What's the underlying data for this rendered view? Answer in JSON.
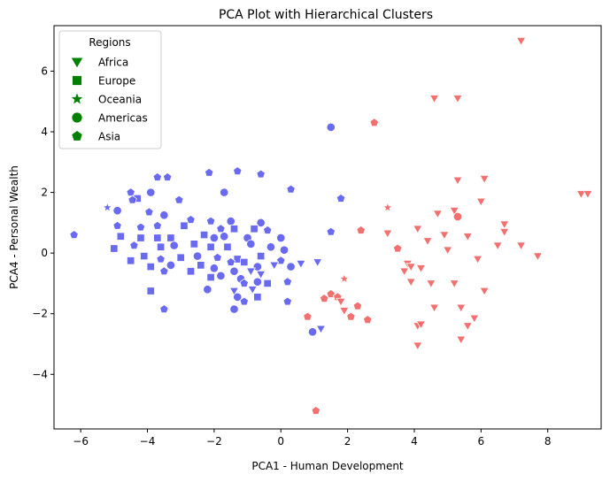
{
  "chart_data": {
    "type": "scatter",
    "title": "PCA Plot with Hierarchical Clusters",
    "xlabel": "PCA1 - Human Development",
    "ylabel": "PCA4 - Personal Wealth",
    "xlim": [
      -6.8,
      9.6
    ],
    "ylim": [
      -5.8,
      7.5
    ],
    "xticks": [
      -6,
      -4,
      -2,
      0,
      2,
      4,
      6,
      8
    ],
    "yticks": [
      -4,
      -2,
      0,
      2,
      4,
      6
    ],
    "grid": false,
    "legend": {
      "title": "Regions",
      "placement": "top-left",
      "color": "#008000",
      "entries": [
        {
          "label": "Africa",
          "marker": "triangle-down"
        },
        {
          "label": "Europe",
          "marker": "square"
        },
        {
          "label": "Oceania",
          "marker": "star"
        },
        {
          "label": "Americas",
          "marker": "circle"
        },
        {
          "label": "Asia",
          "marker": "pentagon"
        }
      ]
    },
    "cluster_colors": {
      "1": "#f06060",
      "2": "#5a5af0"
    },
    "points": [
      [
        7.2,
        7.0,
        "triangle-down",
        1
      ],
      [
        4.6,
        5.1,
        "triangle-down",
        1
      ],
      [
        5.3,
        5.1,
        "triangle-down",
        1
      ],
      [
        2.8,
        4.3,
        "pentagon",
        1
      ],
      [
        5.3,
        2.4,
        "triangle-down",
        1
      ],
      [
        6.1,
        2.45,
        "triangle-down",
        1
      ],
      [
        9.0,
        1.95,
        "triangle-down",
        1
      ],
      [
        9.2,
        1.95,
        "triangle-down",
        1
      ],
      [
        6.0,
        1.7,
        "triangle-down",
        1
      ],
      [
        3.2,
        1.5,
        "star",
        1
      ],
      [
        5.2,
        1.4,
        "triangle-down",
        1
      ],
      [
        4.7,
        1.3,
        "triangle-down",
        1
      ],
      [
        5.3,
        1.2,
        "circle",
        1
      ],
      [
        6.7,
        0.95,
        "triangle-down",
        1
      ],
      [
        2.4,
        0.75,
        "pentagon",
        1
      ],
      [
        4.1,
        0.8,
        "triangle-down",
        1
      ],
      [
        3.2,
        0.65,
        "triangle-down",
        1
      ],
      [
        4.9,
        0.6,
        "triangle-down",
        1
      ],
      [
        5.6,
        0.55,
        "triangle-down",
        1
      ],
      [
        6.7,
        0.7,
        "triangle-down",
        1
      ],
      [
        4.4,
        0.4,
        "triangle-down",
        1
      ],
      [
        3.5,
        0.15,
        "pentagon",
        1
      ],
      [
        6.5,
        0.25,
        "triangle-down",
        1
      ],
      [
        7.2,
        0.25,
        "triangle-down",
        1
      ],
      [
        5.0,
        0.1,
        "triangle-down",
        1
      ],
      [
        7.7,
        -0.1,
        "triangle-down",
        1
      ],
      [
        3.8,
        -0.35,
        "triangle-down",
        1
      ],
      [
        3.9,
        -0.45,
        "triangle-down",
        1
      ],
      [
        3.7,
        -0.6,
        "triangle-down",
        1
      ],
      [
        4.2,
        -0.5,
        "triangle-down",
        1
      ],
      [
        5.9,
        -0.2,
        "triangle-down",
        1
      ],
      [
        3.9,
        -0.95,
        "triangle-down",
        1
      ],
      [
        4.5,
        -1.0,
        "triangle-down",
        1
      ],
      [
        5.2,
        -1.0,
        "triangle-down",
        1
      ],
      [
        1.5,
        -1.35,
        "pentagon",
        1
      ],
      [
        1.7,
        -1.45,
        "pentagon",
        1
      ],
      [
        2.3,
        -1.75,
        "pentagon",
        1
      ],
      [
        1.9,
        -0.85,
        "star",
        1
      ],
      [
        1.8,
        -1.6,
        "triangle-down",
        1
      ],
      [
        1.9,
        -1.9,
        "triangle-down",
        1
      ],
      [
        1.3,
        -1.5,
        "pentagon",
        1
      ],
      [
        0.8,
        -2.1,
        "pentagon",
        1
      ],
      [
        2.1,
        -2.1,
        "pentagon",
        1
      ],
      [
        2.6,
        -2.2,
        "pentagon",
        1
      ],
      [
        4.6,
        -1.8,
        "triangle-down",
        1
      ],
      [
        5.4,
        -1.8,
        "triangle-down",
        1
      ],
      [
        6.1,
        -1.25,
        "triangle-down",
        1
      ],
      [
        5.8,
        -2.15,
        "triangle-down",
        1
      ],
      [
        5.6,
        -2.4,
        "triangle-down",
        1
      ],
      [
        4.1,
        -2.4,
        "triangle-down",
        1
      ],
      [
        4.2,
        -2.35,
        "triangle-down",
        1
      ],
      [
        5.4,
        -2.85,
        "triangle-down",
        1
      ],
      [
        4.1,
        -3.05,
        "triangle-down",
        1
      ],
      [
        1.05,
        -5.2,
        "pentagon",
        1
      ],
      [
        1.5,
        4.15,
        "circle",
        2
      ],
      [
        -1.3,
        2.7,
        "pentagon",
        2
      ],
      [
        -2.15,
        2.65,
        "pentagon",
        2
      ],
      [
        -3.7,
        2.5,
        "pentagon",
        2
      ],
      [
        -3.4,
        2.5,
        "pentagon",
        2
      ],
      [
        -0.6,
        2.6,
        "pentagon",
        2
      ],
      [
        0.3,
        2.1,
        "pentagon",
        2
      ],
      [
        -4.5,
        2.0,
        "pentagon",
        2
      ],
      [
        -3.9,
        2.0,
        "circle",
        2
      ],
      [
        -1.7,
        2.0,
        "circle",
        2
      ],
      [
        1.8,
        1.8,
        "pentagon",
        2
      ],
      [
        -4.3,
        1.8,
        "square",
        2
      ],
      [
        -3.05,
        1.75,
        "pentagon",
        2
      ],
      [
        -4.45,
        1.75,
        "pentagon",
        2
      ],
      [
        -4.9,
        1.4,
        "circle",
        2
      ],
      [
        -5.2,
        1.5,
        "star",
        2
      ],
      [
        -3.95,
        1.35,
        "pentagon",
        2
      ],
      [
        -3.5,
        1.25,
        "circle",
        2
      ],
      [
        -2.1,
        1.05,
        "pentagon",
        2
      ],
      [
        -2.7,
        1.1,
        "pentagon",
        2
      ],
      [
        -1.5,
        1.05,
        "circle",
        2
      ],
      [
        -0.6,
        1.0,
        "circle",
        2
      ],
      [
        -4.9,
        0.9,
        "pentagon",
        2
      ],
      [
        -4.2,
        0.85,
        "pentagon",
        2
      ],
      [
        -3.7,
        0.9,
        "pentagon",
        2
      ],
      [
        -2.9,
        0.9,
        "square",
        2
      ],
      [
        -1.8,
        0.8,
        "pentagon",
        2
      ],
      [
        -1.4,
        0.8,
        "square",
        2
      ],
      [
        -0.8,
        0.8,
        "square",
        2
      ],
      [
        -0.4,
        0.75,
        "pentagon",
        2
      ],
      [
        1.5,
        0.7,
        "pentagon",
        2
      ],
      [
        -4.8,
        0.55,
        "square",
        2
      ],
      [
        -4.2,
        0.5,
        "square",
        2
      ],
      [
        -3.7,
        0.5,
        "square",
        2
      ],
      [
        -3.3,
        0.5,
        "square",
        2
      ],
      [
        -2.3,
        0.6,
        "square",
        2
      ],
      [
        -2.0,
        0.5,
        "circle",
        2
      ],
      [
        -1.7,
        0.55,
        "circle",
        2
      ],
      [
        -1.0,
        0.5,
        "circle",
        2
      ],
      [
        0.0,
        0.5,
        "circle",
        2
      ],
      [
        -5.0,
        0.15,
        "square",
        2
      ],
      [
        -4.4,
        0.25,
        "pentagon",
        2
      ],
      [
        -3.6,
        0.2,
        "square",
        2
      ],
      [
        -3.2,
        0.25,
        "circle",
        2
      ],
      [
        -2.6,
        0.3,
        "square",
        2
      ],
      [
        -2.1,
        0.2,
        "square",
        2
      ],
      [
        -1.6,
        0.2,
        "square",
        2
      ],
      [
        -0.9,
        0.3,
        "circle",
        2
      ],
      [
        -0.3,
        0.2,
        "circle",
        2
      ],
      [
        0.1,
        0.1,
        "circle",
        2
      ],
      [
        -4.5,
        -0.25,
        "square",
        2
      ],
      [
        -4.1,
        -0.1,
        "square",
        2
      ],
      [
        -3.6,
        -0.2,
        "pentagon",
        2
      ],
      [
        -3.0,
        -0.15,
        "square",
        2
      ],
      [
        -2.5,
        -0.1,
        "circle",
        2
      ],
      [
        -1.9,
        -0.15,
        "pentagon",
        2
      ],
      [
        -1.3,
        -0.2,
        "square",
        2
      ],
      [
        -0.6,
        -0.1,
        "square",
        2
      ],
      [
        0.0,
        -0.25,
        "pentagon",
        2
      ],
      [
        0.6,
        -0.35,
        "triangle-down",
        2
      ],
      [
        1.1,
        -0.3,
        "triangle-down",
        2
      ],
      [
        -3.9,
        -0.45,
        "square",
        2
      ],
      [
        -3.3,
        -0.4,
        "circle",
        2
      ],
      [
        -2.4,
        -0.4,
        "square",
        2
      ],
      [
        -1.5,
        -0.3,
        "pentagon",
        2
      ],
      [
        -1.1,
        -0.3,
        "square",
        2
      ],
      [
        -0.7,
        -0.45,
        "circle",
        2
      ],
      [
        0.3,
        -0.45,
        "circle",
        2
      ],
      [
        -0.2,
        -0.4,
        "triangle-down",
        2
      ],
      [
        -3.5,
        -0.6,
        "pentagon",
        2
      ],
      [
        -2.7,
        -0.6,
        "square",
        2
      ],
      [
        -2.0,
        -0.5,
        "circle",
        2
      ],
      [
        -1.4,
        -0.6,
        "circle",
        2
      ],
      [
        -0.9,
        -0.6,
        "triangle-down",
        2
      ],
      [
        -2.1,
        -0.8,
        "square",
        2
      ],
      [
        -1.8,
        -0.75,
        "circle",
        2
      ],
      [
        -1.2,
        -0.85,
        "circle",
        2
      ],
      [
        -0.6,
        -0.7,
        "triangle-down",
        2
      ],
      [
        0.2,
        -0.95,
        "pentagon",
        2
      ],
      [
        -1.1,
        -1.0,
        "pentagon",
        2
      ],
      [
        -0.7,
        -0.95,
        "circle",
        2
      ],
      [
        -0.4,
        -1.0,
        "square",
        2
      ],
      [
        -3.9,
        -1.25,
        "square",
        2
      ],
      [
        -2.2,
        -1.2,
        "circle",
        2
      ],
      [
        -1.4,
        -1.25,
        "triangle-down",
        2
      ],
      [
        -0.85,
        -1.2,
        "triangle-down",
        2
      ],
      [
        -1.3,
        -1.45,
        "circle",
        2
      ],
      [
        -0.7,
        -1.45,
        "square",
        2
      ],
      [
        0.2,
        -1.6,
        "pentagon",
        2
      ],
      [
        -1.1,
        -1.6,
        "pentagon",
        2
      ],
      [
        -3.5,
        -1.85,
        "pentagon",
        2
      ],
      [
        -1.4,
        -1.85,
        "circle",
        2
      ],
      [
        1.2,
        -2.5,
        "triangle-down",
        2
      ],
      [
        0.95,
        -2.6,
        "circle",
        2
      ],
      [
        -6.2,
        0.6,
        "pentagon",
        2
      ]
    ]
  }
}
